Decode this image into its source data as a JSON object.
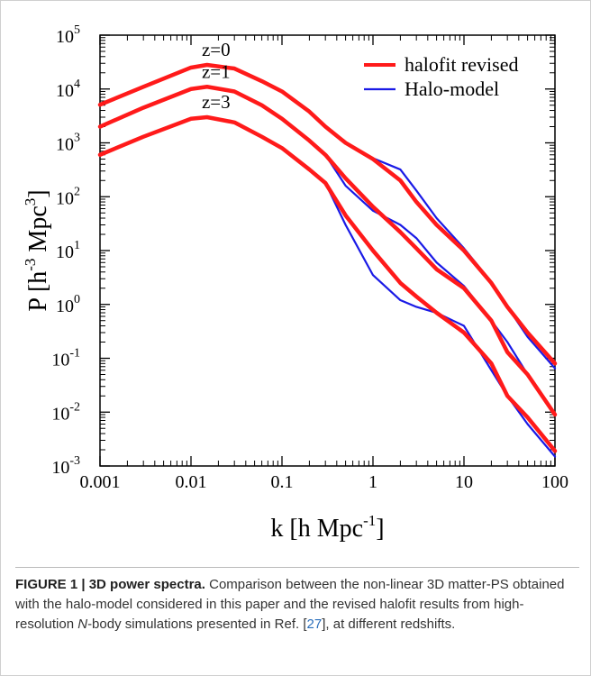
{
  "chart_data": {
    "type": "line",
    "log_x": true,
    "log_y": true,
    "minor_ticks": true,
    "x": [
      0.001,
      0.003,
      0.01,
      0.015,
      0.03,
      0.06,
      0.1,
      0.2,
      0.3,
      0.5,
      1,
      2,
      3,
      5,
      10,
      20,
      30,
      50,
      100
    ],
    "series": [
      {
        "name": "halofit revised",
        "color": "#ff1a1a",
        "curves": [
          [
            5100,
            11000,
            25000,
            28000,
            24000,
            14000,
            9000,
            3800,
            2000,
            1000,
            500,
            200,
            80,
            30,
            10,
            2.5,
            0.9,
            0.3,
            0.08
          ],
          [
            2000,
            4500,
            10000,
            11000,
            9000,
            5000,
            2800,
            1100,
            600,
            220,
            65,
            22,
            11,
            4.5,
            2,
            0.5,
            0.13,
            0.05,
            0.009
          ],
          [
            600,
            1300,
            2800,
            3000,
            2400,
            1300,
            800,
            320,
            180,
            45,
            10,
            2.5,
            1.4,
            0.7,
            0.3,
            0.08,
            0.02,
            0.008,
            0.0019
          ]
        ]
      },
      {
        "name": "Halo-model",
        "color": "#1a1ae6",
        "curves": [
          [
            5100,
            11000,
            25000,
            28000,
            24000,
            14000,
            9000,
            3800,
            2000,
            1000,
            520,
            320,
            130,
            40,
            11,
            2.6,
            0.9,
            0.25,
            0.065
          ],
          [
            2000,
            4500,
            10000,
            11000,
            9000,
            5000,
            2800,
            1100,
            600,
            160,
            55,
            30,
            17,
            6,
            2.2,
            0.5,
            0.2,
            0.05,
            0.009
          ],
          [
            600,
            1300,
            2800,
            3000,
            2400,
            1300,
            800,
            320,
            180,
            30,
            3.5,
            1.2,
            0.9,
            0.7,
            0.4,
            0.06,
            0.02,
            0.006,
            0.0015
          ]
        ]
      }
    ],
    "curve_labels": [
      "z=0",
      "z=1",
      "z=3"
    ],
    "xlim": [
      0.001,
      100
    ],
    "ylim": [
      0.001,
      100000
    ],
    "xticks": [
      0.001,
      0.01,
      0.1,
      1,
      10,
      100
    ],
    "yticks": [
      {
        "value": 0.001,
        "label": {
          "base": "10",
          "exp": "-3"
        }
      },
      {
        "value": 0.01,
        "label": {
          "base": "10",
          "exp": "-2"
        }
      },
      {
        "value": 0.1,
        "label": {
          "base": "10",
          "exp": "-1"
        }
      },
      {
        "value": 1,
        "label": {
          "base": "10",
          "exp": "0"
        }
      },
      {
        "value": 10,
        "label": {
          "base": "10",
          "exp": "1"
        }
      },
      {
        "value": 100,
        "label": {
          "base": "10",
          "exp": "2"
        }
      },
      {
        "value": 1000,
        "label": {
          "base": "10",
          "exp": "3"
        }
      },
      {
        "value": 10000,
        "label": {
          "base": "10",
          "exp": "4"
        }
      },
      {
        "value": 100000,
        "label": {
          "base": "10",
          "exp": "5"
        }
      }
    ],
    "xlabel": [
      "k [h Mpc",
      "-1",
      "]"
    ],
    "ylabel": [
      "P [h",
      "-3",
      " Mpc",
      "3",
      "]"
    ],
    "legend": "upper right"
  },
  "caption": {
    "label": "FIGURE 1 | 3D power spectra.",
    "parts": [
      " Comparison between the non-linear 3D matter-PS obtained with the halo-model considered in this paper and the revised halofit results from high-resolution ",
      "N",
      "-body simulations presented in Ref. [",
      "27",
      "], at different redshifts."
    ]
  }
}
